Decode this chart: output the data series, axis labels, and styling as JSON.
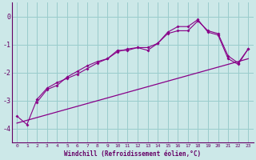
{
  "xlabel": "Windchill (Refroidissement éolien,°C)",
  "ylabel": "",
  "bg_color": "#cce8e8",
  "line_color": "#880088",
  "grid_color": "#99cccc",
  "axis_color": "#660066",
  "tick_color": "#660066",
  "xlim": [
    -0.5,
    23.5
  ],
  "ylim": [
    -4.5,
    0.5
  ],
  "xticks": [
    0,
    1,
    2,
    3,
    4,
    5,
    6,
    7,
    8,
    9,
    10,
    11,
    12,
    13,
    14,
    15,
    16,
    17,
    18,
    19,
    20,
    21,
    22,
    23
  ],
  "yticks": [
    0,
    -1,
    -2,
    -3,
    -4
  ],
  "line1_x": [
    0,
    1,
    2,
    3,
    4,
    5,
    6,
    7,
    8,
    9,
    10,
    11,
    12,
    13,
    14,
    15,
    16,
    17,
    18,
    19,
    20,
    21,
    22,
    23
  ],
  "line1_y": [
    -3.55,
    -3.85,
    -2.95,
    -2.55,
    -2.35,
    -2.2,
    -2.05,
    -1.85,
    -1.65,
    -1.5,
    -1.2,
    -1.2,
    -1.1,
    -1.2,
    -0.95,
    -0.55,
    -0.35,
    -0.35,
    -0.1,
    -0.55,
    -0.65,
    -1.5,
    -1.7,
    -1.15
  ],
  "line2_x": [
    2,
    3,
    4,
    5,
    6,
    7,
    8,
    9,
    10,
    11,
    12,
    13,
    14,
    15,
    16,
    17,
    18,
    19,
    20,
    21,
    22,
    23
  ],
  "line2_y": [
    -3.05,
    -2.6,
    -2.45,
    -2.15,
    -1.95,
    -1.75,
    -1.6,
    -1.5,
    -1.25,
    -1.15,
    -1.1,
    -1.1,
    -0.95,
    -0.6,
    -0.5,
    -0.5,
    -0.15,
    -0.5,
    -0.6,
    -1.4,
    -1.65,
    -1.15
  ],
  "line3_x": [
    0,
    23
  ],
  "line3_y": [
    -3.8,
    -1.5
  ]
}
